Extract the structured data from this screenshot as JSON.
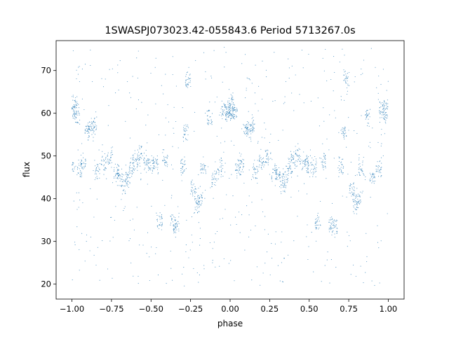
{
  "chart_data": {
    "type": "scatter",
    "title": "1SWASPJ073023.42-055843.6 Period 5713267.0s",
    "xlabel": "phase",
    "ylabel": "flux",
    "xlim": [
      -1.1,
      1.1
    ],
    "ylim": [
      16.5,
      77.0
    ],
    "xticks": [
      -1.0,
      -0.75,
      -0.5,
      -0.25,
      0.0,
      0.25,
      0.5,
      0.75,
      1.0
    ],
    "xtick_labels": [
      "−1.00",
      "−0.75",
      "−0.50",
      "−0.25",
      "0.00",
      "0.25",
      "0.50",
      "0.75",
      "1.00"
    ],
    "yticks": [
      20,
      30,
      40,
      50,
      60,
      70
    ],
    "ytick_labels": [
      "20",
      "30",
      "40",
      "50",
      "60",
      "70"
    ],
    "grid": false,
    "legend": "none",
    "point_color": "#1f77b4",
    "series": [
      {
        "phase_range": [
          -1.0,
          1.0
        ],
        "symmetric_about_zero": true,
        "points": [
          [
            -1.0,
            47.5
          ],
          [
            -0.99,
            60.5
          ],
          [
            -0.985,
            62.0
          ],
          [
            -0.97,
            60.0
          ],
          [
            -0.95,
            47.0
          ],
          [
            -0.93,
            48.0
          ],
          [
            -0.9,
            56.5
          ],
          [
            -0.88,
            56.0
          ],
          [
            -0.86,
            57.0
          ],
          [
            -0.84,
            46.5
          ],
          [
            -0.8,
            48.5
          ],
          [
            -0.76,
            50.0
          ],
          [
            -0.72,
            46.0
          ],
          [
            -0.7,
            45.5
          ],
          [
            -0.67,
            43.5
          ],
          [
            -0.65,
            45.0
          ],
          [
            -0.62,
            47.0
          ],
          [
            -0.6,
            49.0
          ],
          [
            -0.57,
            50.0
          ],
          [
            -0.53,
            48.5
          ],
          [
            -0.5,
            48.0
          ],
          [
            -0.47,
            47.5
          ],
          [
            -0.445,
            34.5
          ],
          [
            -0.41,
            49.0
          ],
          [
            -0.36,
            34.0
          ],
          [
            -0.34,
            33.5
          ],
          [
            -0.3,
            47.5
          ],
          [
            -0.28,
            55.5
          ],
          [
            -0.265,
            67.5
          ],
          [
            -0.23,
            42.0
          ],
          [
            -0.21,
            38.5
          ],
          [
            -0.19,
            40.0
          ],
          [
            -0.17,
            47.0
          ],
          [
            -0.13,
            59.0
          ],
          [
            -0.1,
            45.0
          ],
          [
            -0.06,
            47.0
          ],
          [
            -0.04,
            60.5
          ],
          [
            -0.02,
            61.5
          ],
          [
            -0.01,
            60.0
          ]
        ]
      }
    ]
  }
}
